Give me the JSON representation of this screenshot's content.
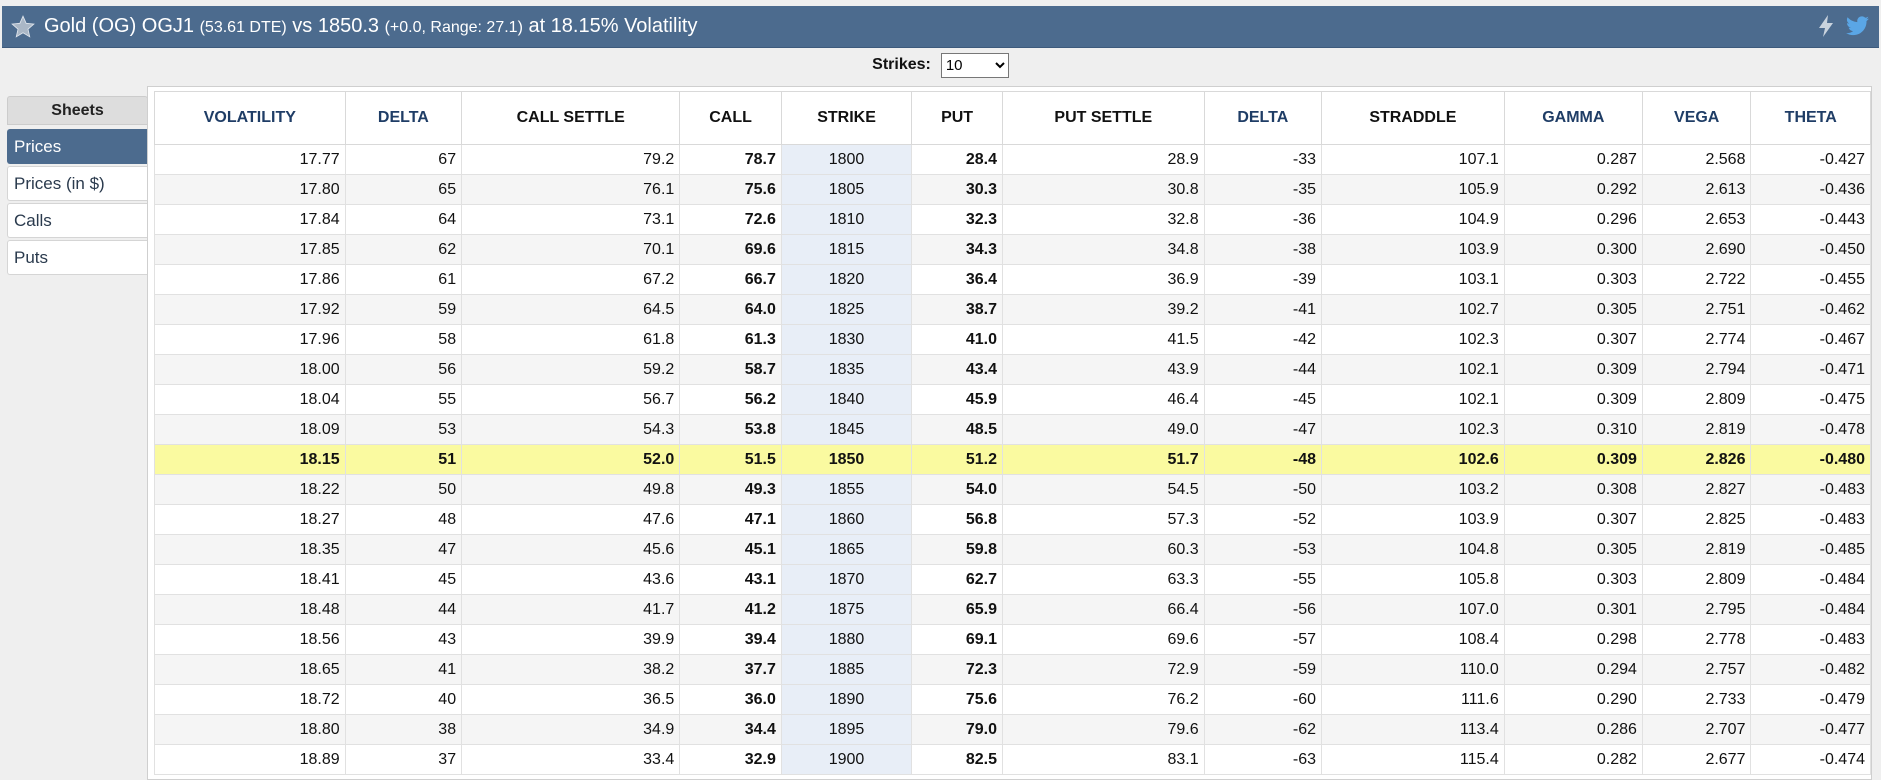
{
  "header": {
    "title_start": "Gold (OG) OGJ1 ",
    "dte": "(53.61 DTE)",
    "vs_text": " vs 1850.3 ",
    "change_range": "(+0.0,  Range: 27.1)",
    "vol_text": " at 18.15% Volatility"
  },
  "strikes": {
    "label": "Strikes:",
    "selected": "10"
  },
  "sidebar": {
    "title": "Sheets",
    "items": [
      "Prices",
      "Prices (in $)",
      "Calls",
      "Puts"
    ]
  },
  "table": {
    "columns": [
      "VOLATILITY",
      "DELTA",
      "CALL SETTLE",
      "CALL",
      "STRIKE",
      "PUT",
      "PUT SETTLE",
      "DELTA",
      "STRADDLE",
      "GAMMA",
      "VEGA",
      "THETA"
    ],
    "rows": [
      [
        "17.77",
        "67",
        "79.2",
        "78.7",
        "1800",
        "28.4",
        "28.9",
        "-33",
        "107.1",
        "0.287",
        "2.568",
        "-0.427"
      ],
      [
        "17.80",
        "65",
        "76.1",
        "75.6",
        "1805",
        "30.3",
        "30.8",
        "-35",
        "105.9",
        "0.292",
        "2.613",
        "-0.436"
      ],
      [
        "17.84",
        "64",
        "73.1",
        "72.6",
        "1810",
        "32.3",
        "32.8",
        "-36",
        "104.9",
        "0.296",
        "2.653",
        "-0.443"
      ],
      [
        "17.85",
        "62",
        "70.1",
        "69.6",
        "1815",
        "34.3",
        "34.8",
        "-38",
        "103.9",
        "0.300",
        "2.690",
        "-0.450"
      ],
      [
        "17.86",
        "61",
        "67.2",
        "66.7",
        "1820",
        "36.4",
        "36.9",
        "-39",
        "103.1",
        "0.303",
        "2.722",
        "-0.455"
      ],
      [
        "17.92",
        "59",
        "64.5",
        "64.0",
        "1825",
        "38.7",
        "39.2",
        "-41",
        "102.7",
        "0.305",
        "2.751",
        "-0.462"
      ],
      [
        "17.96",
        "58",
        "61.8",
        "61.3",
        "1830",
        "41.0",
        "41.5",
        "-42",
        "102.3",
        "0.307",
        "2.774",
        "-0.467"
      ],
      [
        "18.00",
        "56",
        "59.2",
        "58.7",
        "1835",
        "43.4",
        "43.9",
        "-44",
        "102.1",
        "0.309",
        "2.794",
        "-0.471"
      ],
      [
        "18.04",
        "55",
        "56.7",
        "56.2",
        "1840",
        "45.9",
        "46.4",
        "-45",
        "102.1",
        "0.309",
        "2.809",
        "-0.475"
      ],
      [
        "18.09",
        "53",
        "54.3",
        "53.8",
        "1845",
        "48.5",
        "49.0",
        "-47",
        "102.3",
        "0.310",
        "2.819",
        "-0.478"
      ],
      [
        "18.15",
        "51",
        "52.0",
        "51.5",
        "1850",
        "51.2",
        "51.7",
        "-48",
        "102.6",
        "0.309",
        "2.826",
        "-0.480"
      ],
      [
        "18.22",
        "50",
        "49.8",
        "49.3",
        "1855",
        "54.0",
        "54.5",
        "-50",
        "103.2",
        "0.308",
        "2.827",
        "-0.483"
      ],
      [
        "18.27",
        "48",
        "47.6",
        "47.1",
        "1860",
        "56.8",
        "57.3",
        "-52",
        "103.9",
        "0.307",
        "2.825",
        "-0.483"
      ],
      [
        "18.35",
        "47",
        "45.6",
        "45.1",
        "1865",
        "59.8",
        "60.3",
        "-53",
        "104.8",
        "0.305",
        "2.819",
        "-0.485"
      ],
      [
        "18.41",
        "45",
        "43.6",
        "43.1",
        "1870",
        "62.7",
        "63.3",
        "-55",
        "105.8",
        "0.303",
        "2.809",
        "-0.484"
      ],
      [
        "18.48",
        "44",
        "41.7",
        "41.2",
        "1875",
        "65.9",
        "66.4",
        "-56",
        "107.0",
        "0.301",
        "2.795",
        "-0.484"
      ],
      [
        "18.56",
        "43",
        "39.9",
        "39.4",
        "1880",
        "69.1",
        "69.6",
        "-57",
        "108.4",
        "0.298",
        "2.778",
        "-0.483"
      ],
      [
        "18.65",
        "41",
        "38.2",
        "37.7",
        "1885",
        "72.3",
        "72.9",
        "-59",
        "110.0",
        "0.294",
        "2.757",
        "-0.482"
      ],
      [
        "18.72",
        "40",
        "36.5",
        "36.0",
        "1890",
        "75.6",
        "76.2",
        "-60",
        "111.6",
        "0.290",
        "2.733",
        "-0.479"
      ],
      [
        "18.80",
        "38",
        "34.9",
        "34.4",
        "1895",
        "79.0",
        "79.6",
        "-62",
        "113.4",
        "0.286",
        "2.707",
        "-0.477"
      ],
      [
        "18.89",
        "37",
        "33.4",
        "32.9",
        "1900",
        "82.5",
        "83.1",
        "-63",
        "115.4",
        "0.282",
        "2.677",
        "-0.474"
      ]
    ],
    "highlight_strike": "1850"
  },
  "colors": {
    "header_bg": "#4c6b8e",
    "atm_highlight": "#fafaa0",
    "strike_bg": "#e8eef7"
  },
  "icons": [
    "star-icon",
    "lightning-icon",
    "twitter-icon"
  ]
}
